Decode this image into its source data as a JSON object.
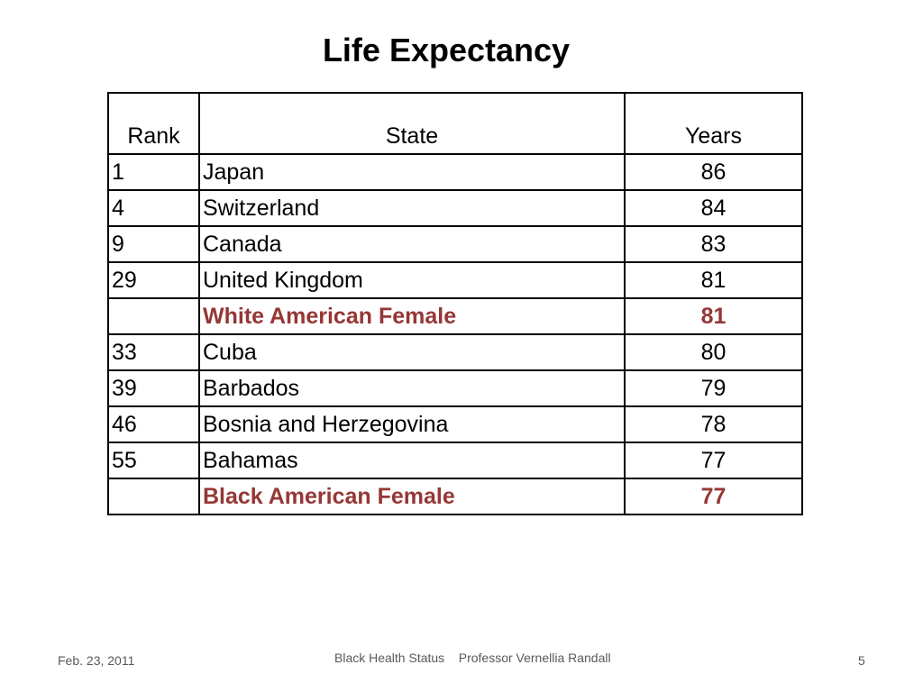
{
  "title": "Life Expectancy",
  "table": {
    "headers": {
      "rank": "Rank",
      "state": "State",
      "years": "Years"
    },
    "rows": [
      {
        "rank": "1",
        "state": "Japan",
        "years": "86",
        "highlight": false
      },
      {
        "rank": "4",
        "state": "Switzerland",
        "years": "84",
        "highlight": false
      },
      {
        "rank": "9",
        "state": "Canada",
        "years": "83",
        "highlight": false
      },
      {
        "rank": "29",
        "state": "United Kingdom",
        "years": "81",
        "highlight": false
      },
      {
        "rank": "",
        "state": "White American Female",
        "years": "81",
        "highlight": true
      },
      {
        "rank": "33",
        "state": "Cuba",
        "years": "80",
        "highlight": false
      },
      {
        "rank": "39",
        "state": "Barbados",
        "years": "79",
        "highlight": false
      },
      {
        "rank": "46",
        "state": "Bosnia and Herzegovina",
        "years": "78",
        "highlight": false
      },
      {
        "rank": "55",
        "state": "Bahamas",
        "years": "77",
        "highlight": false
      },
      {
        "rank": "",
        "state": "Black American Female",
        "years": "77",
        "highlight": true
      }
    ],
    "highlight_color": "#953735"
  },
  "footer": {
    "date": "Feb. 23, 2011",
    "center": "Black Health Status    Professor Vernellia Randall",
    "page_number": "5"
  }
}
